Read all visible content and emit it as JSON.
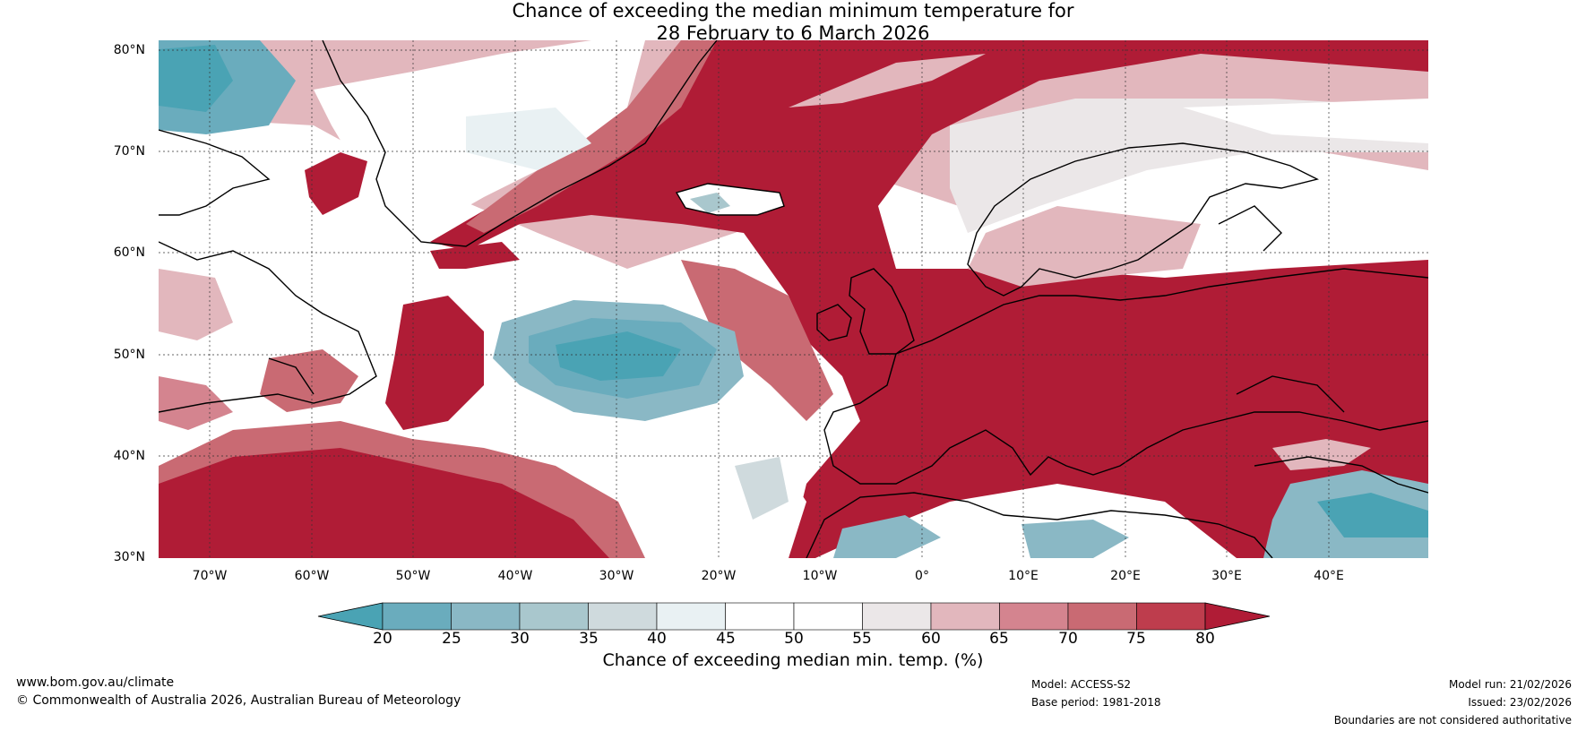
{
  "title": {
    "line1": "Chance of exceeding the median minimum temperature for",
    "line2": "28 February to 6 March 2026"
  },
  "latitude_labels": [
    "80°N",
    "70°N",
    "60°N",
    "50°N",
    "40°N",
    "30°N"
  ],
  "longitude_labels": [
    "70°W",
    "60°W",
    "50°W",
    "40°W",
    "30°W",
    "20°W",
    "10°W",
    "0°",
    "10°E",
    "20°E",
    "30°E",
    "40°E"
  ],
  "colorbar": {
    "ticks": [
      "20",
      "25",
      "30",
      "35",
      "40",
      "45",
      "50",
      "55",
      "60",
      "65",
      "70",
      "75",
      "80"
    ],
    "label": "Chance of exceeding median min. temp. (%)",
    "colors": [
      "#4aa3b4",
      "#6aacbd",
      "#8ab8c5",
      "#a9c7cd",
      "#cfdadd",
      "#e9f1f3",
      "#ffffff",
      "#ffffff",
      "#ebe7e8",
      "#e2b7bd",
      "#d4848f",
      "#c96a73",
      "#be3d4d",
      "#b01c36"
    ]
  },
  "footer": {
    "url": "www.bom.gov.au/climate",
    "copyright": "© Commonwealth of Australia 2026, Australian Bureau of Meteorology",
    "model": "Model: ACCESS-S2",
    "base_period": "Base period: 1981-2018",
    "model_run": "Model run: 21/02/2026",
    "issued": "Issued: 23/02/2026",
    "disclaimer": "Boundaries are not considered authoritative"
  }
}
